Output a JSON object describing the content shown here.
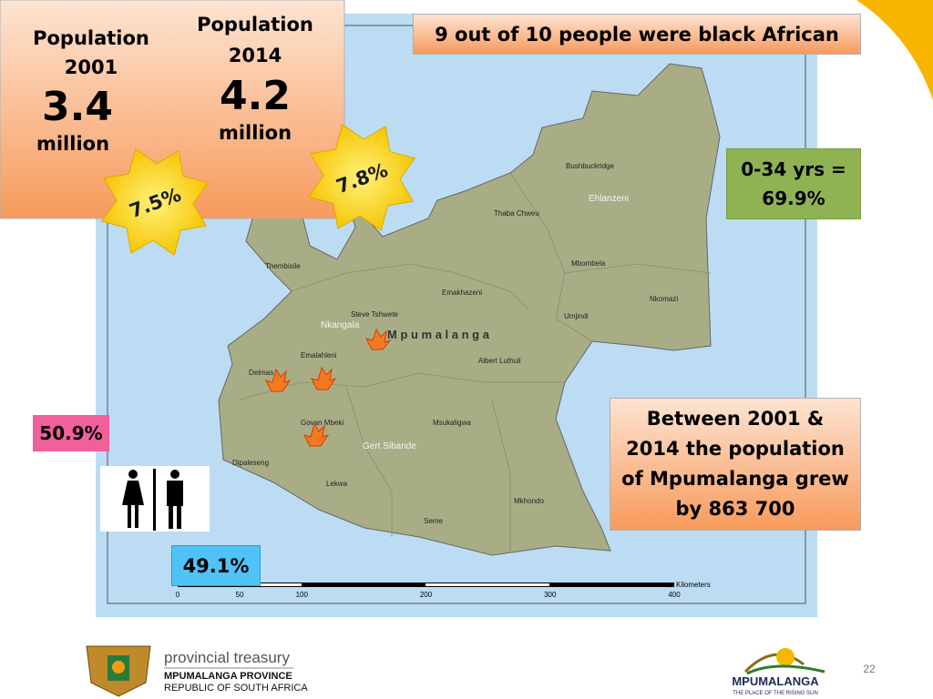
{
  "population_2001": {
    "label": "Population 2001",
    "value": "3.4",
    "unit": "million",
    "growth": "7.5%"
  },
  "population_2014": {
    "label": "Population 2014",
    "value": "4.2",
    "unit": "million",
    "growth": "7.8%"
  },
  "race_note": "9 out of 10 people were black African",
  "youth_note": "0-34 yrs = 69.9%",
  "growth_note": "Between 2001 & 2014 the population of Mpumalanga grew by 863 700",
  "female_share": "50.9%",
  "male_share": "49.1%",
  "map": {
    "province": "M p u m a l a n g a",
    "districts": [
      "Ehlanzeni",
      "Nkangala",
      "Gert Sibande"
    ],
    "municipalities": [
      "Bushbuckridge",
      "Thaba Chweu",
      "Mbombela",
      "Nkomazi",
      "Umjindi",
      "Emakhazeni",
      "Thembisile",
      "Steve Tshwete",
      "Emalahleni",
      "Albert Luthuli",
      "Delmas",
      "Govan Mbeki",
      "Msukaligwa",
      "Dipaleseng",
      "Lekwa",
      "Mkhondo",
      "Seme"
    ],
    "scale": {
      "ticks": [
        0,
        50,
        100,
        200,
        300,
        400
      ],
      "unit": "Kilometers"
    }
  },
  "footer": {
    "treasury": "provincial treasury",
    "province": "MPUMALANGA PROVINCE",
    "country": "REPUBLIC OF SOUTH AFRICA",
    "brand": "MPUMALANGA",
    "slogan": "THE PLACE OF THE RISING SUN",
    "page": "22"
  }
}
